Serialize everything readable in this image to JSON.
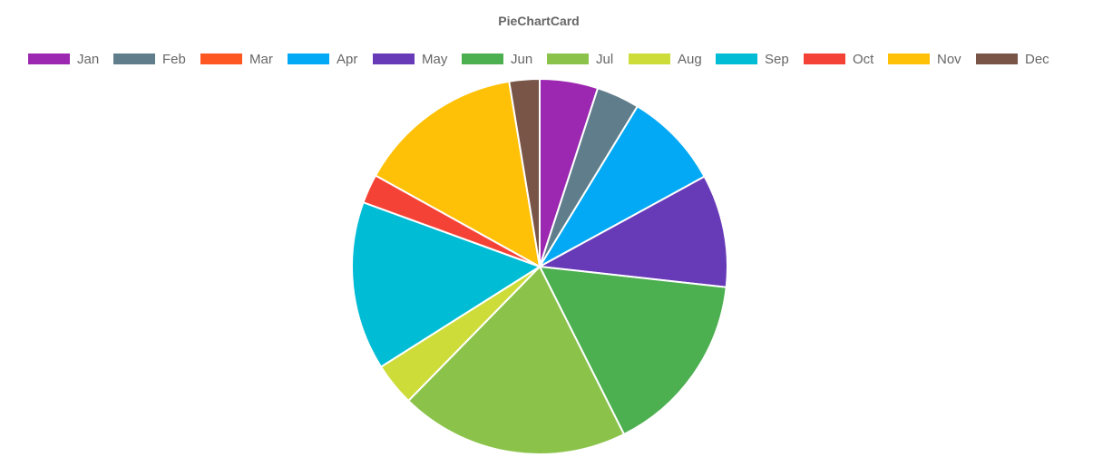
{
  "chart_data": {
    "type": "pie",
    "title": "PieChartCard",
    "legend_position": "top",
    "categories": [
      "Jan",
      "Feb",
      "Mar",
      "Apr",
      "May",
      "Jun",
      "Jul",
      "Aug",
      "Sep",
      "Oct",
      "Nov",
      "Dec"
    ],
    "values": [
      5.0,
      3.7,
      0.0,
      8.3,
      9.7,
      15.8,
      19.7,
      3.7,
      14.5,
      2.5,
      14.3,
      2.6
    ],
    "colors": [
      "#9c27b0",
      "#607d8b",
      "#ff5722",
      "#03a9f4",
      "#673ab7",
      "#4caf50",
      "#8bc34a",
      "#cddc39",
      "#00bcd4",
      "#f44336",
      "#ffc107",
      "#795548"
    ]
  }
}
